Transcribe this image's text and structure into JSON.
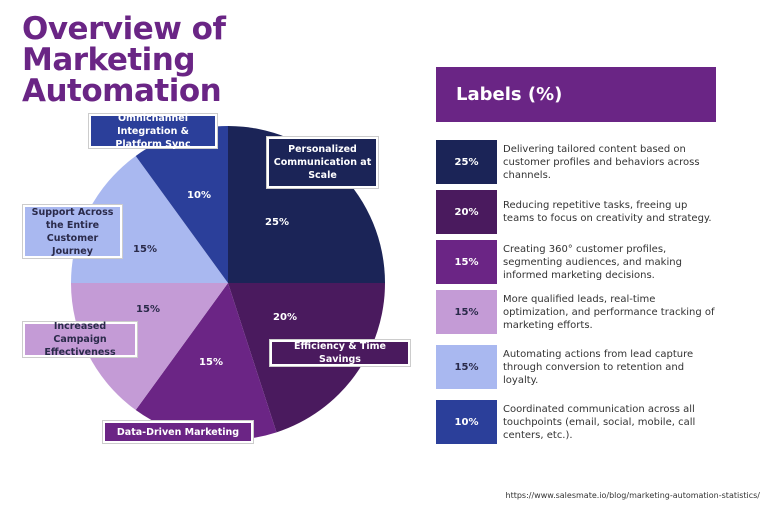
{
  "chart_data": {
    "type": "pie",
    "title": "Overview of Marketing Automation",
    "categories": [
      "Personalized Communication at Scale",
      "Efficiency & Time Savings",
      "Data-Driven Marketing",
      "Increased Campaign Effectiveness",
      "Support Across the Entire Customer Journey",
      "Omnichannel Integration & Platform Sync"
    ],
    "values": [
      25,
      20,
      15,
      15,
      15,
      10
    ],
    "value_labels": [
      "25%",
      "20%",
      "15%",
      "15%",
      "15%",
      "10%"
    ],
    "colors": [
      "#1b2457",
      "#4a1a5e",
      "#6b2585",
      "#c49bd6",
      "#a9b8f0",
      "#2b3f9a"
    ],
    "legend_title": "Labels (%)",
    "descriptions": [
      "Delivering tailored content based on customer profiles and behaviors across channels.",
      "Reducing repetitive tasks, freeing up teams to focus on creativity and strategy.",
      "Creating 360° customer profiles, segmenting audiences, and making informed marketing decisions.",
      "More qualified leads, real-time optimization, and performance tracking of marketing efforts.",
      "Automating actions from lead capture through conversion to retention and loyalty.",
      "Coordinated communication across all touchpoints (email, social, mobile, call centers, etc.)."
    ],
    "source": "https://www.salesmate.io/blog/marketing-automation-statistics/"
  }
}
